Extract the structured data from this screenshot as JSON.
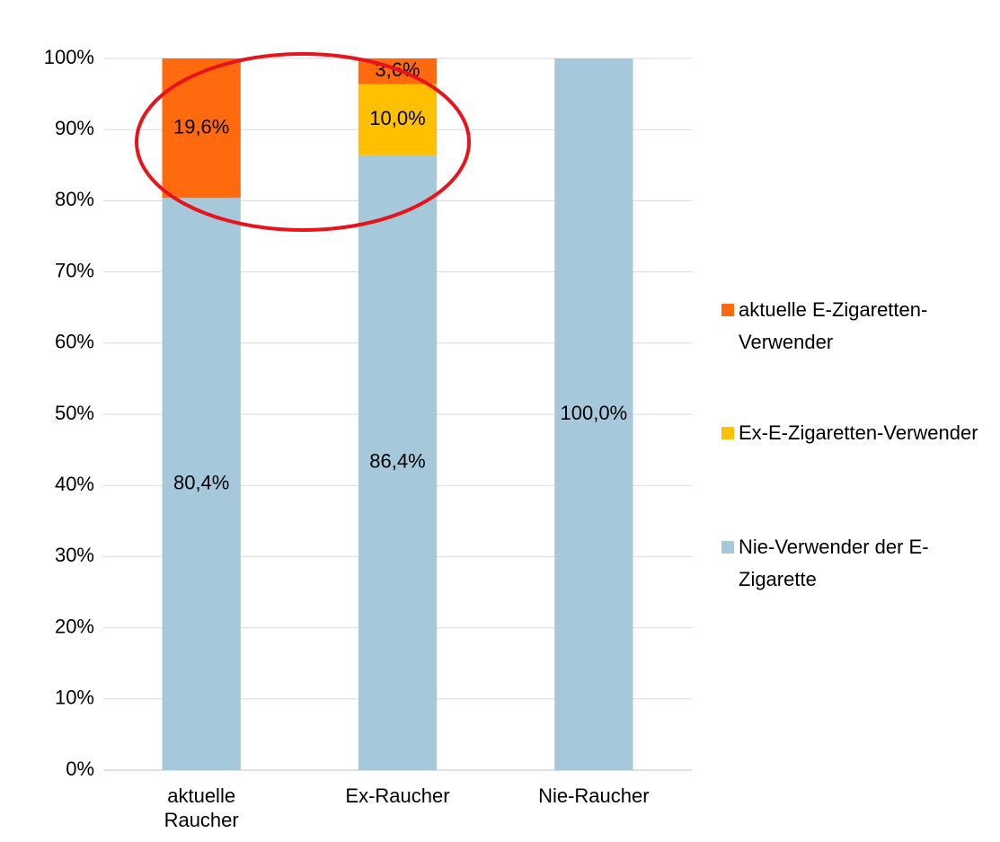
{
  "chart_data": {
    "type": "stacked_bar",
    "categories": [
      "aktuelle Raucher",
      "Ex-Raucher",
      "Nie-Raucher"
    ],
    "series": [
      {
        "name": "Nie-Verwender der E-Zigarette",
        "color": "#a5c8da",
        "values": [
          80.4,
          86.4,
          100.0
        ],
        "value_labels": [
          "80,4%",
          "86,4%",
          "100,0%"
        ]
      },
      {
        "name": "Ex-E-Zigaretten-Verwender",
        "color": "#ffc000",
        "values": [
          null,
          10.0,
          null
        ],
        "value_labels": [
          null,
          "10,0%",
          null
        ]
      },
      {
        "name": "aktuelle E-Zigaretten-Verwender",
        "color": "#ff6a0e",
        "values": [
          19.6,
          3.6,
          null
        ],
        "value_labels": [
          "19,6%",
          "3,6%",
          null
        ]
      }
    ],
    "ylim": [
      0,
      100
    ],
    "yticks": [
      {
        "value": 0,
        "label": "0%"
      },
      {
        "value": 10,
        "label": "10%"
      },
      {
        "value": 20,
        "label": "20%"
      },
      {
        "value": 30,
        "label": "30%"
      },
      {
        "value": 40,
        "label": "40%"
      },
      {
        "value": 50,
        "label": "50%"
      },
      {
        "value": 60,
        "label": "60%"
      },
      {
        "value": 70,
        "label": "70%"
      },
      {
        "value": 80,
        "label": "80%"
      },
      {
        "value": 90,
        "label": "90%"
      },
      {
        "value": 100,
        "label": "100%"
      }
    ],
    "grid": true,
    "legend": "right"
  }
}
